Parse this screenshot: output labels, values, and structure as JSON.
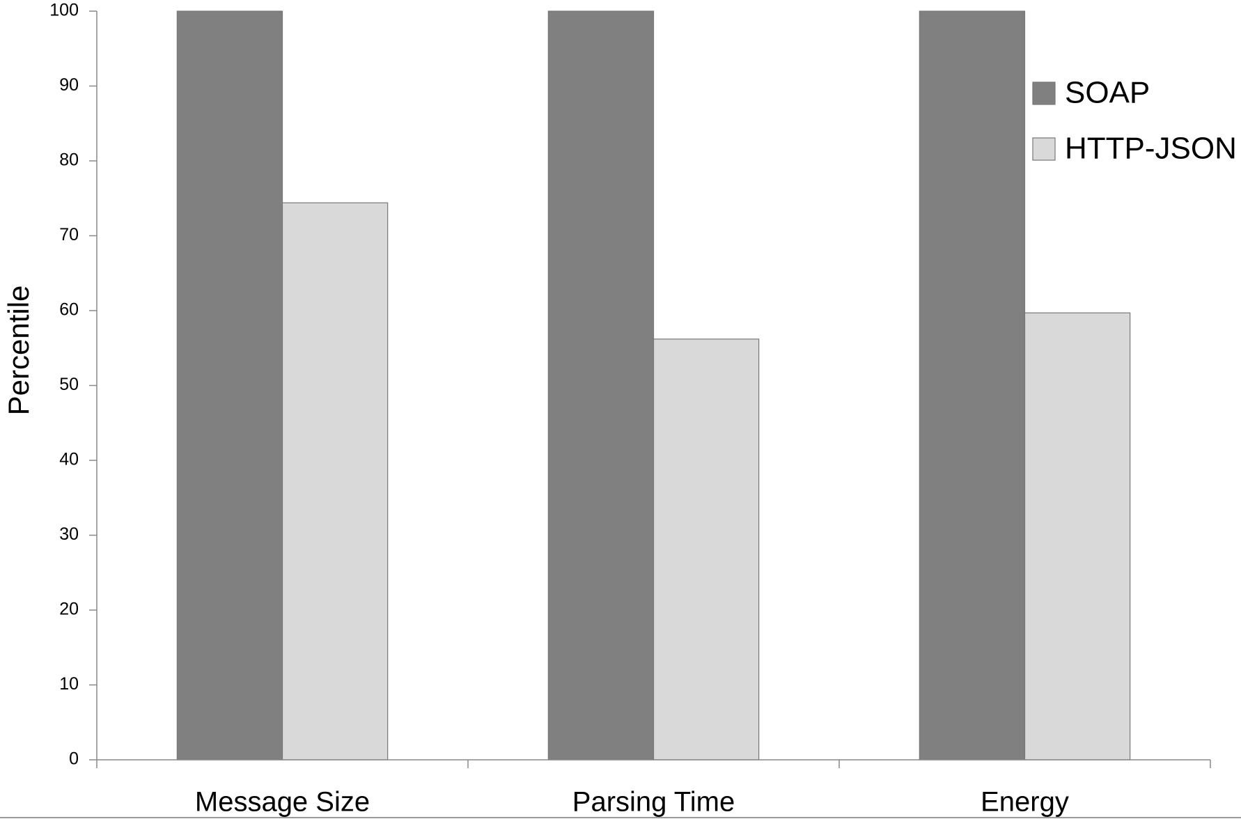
{
  "chart_data": {
    "type": "bar",
    "y_label": "Percentile",
    "categories": [
      "Message Size",
      "Parsing Time",
      "Energy"
    ],
    "series": [
      {
        "name": "SOAP",
        "color": "#808080",
        "values": [
          100,
          100,
          100
        ]
      },
      {
        "name": "HTTP-JSON",
        "color": "#d9d9d9",
        "values": [
          74.4,
          56.2,
          59.7
        ]
      }
    ],
    "ylim": [
      0,
      100
    ],
    "yticks": [
      0,
      10,
      20,
      30,
      40,
      50,
      60,
      70,
      80,
      90,
      100
    ],
    "grid": false,
    "legend": "right"
  }
}
